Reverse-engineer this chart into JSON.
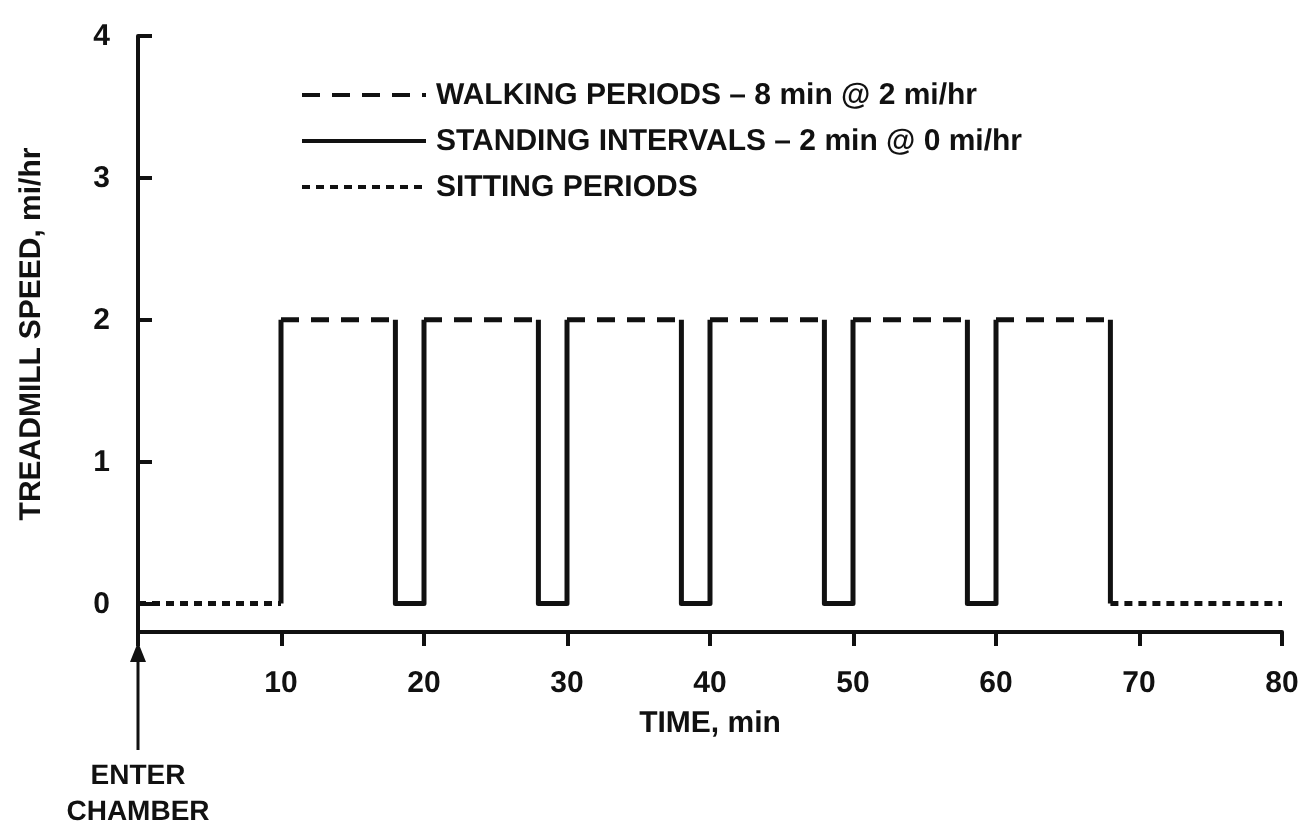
{
  "chart_data": {
    "type": "line",
    "xlabel": "TIME, min",
    "ylabel": "TREADMILL SPEED, mi/hr",
    "xlim": [
      0,
      80
    ],
    "xticks": [
      {
        "value": 0,
        "label": null
      },
      10,
      20,
      30,
      40,
      50,
      60,
      70,
      80
    ],
    "ylim": [
      -0.2,
      4
    ],
    "yticks": [
      0,
      1,
      2,
      3,
      4
    ],
    "grid": false,
    "legend": "top left",
    "marker": "none",
    "annotations": [
      "ENTER\nCHAMBER"
    ],
    "series": [
      {
        "name": "WALKING PERIODS – 8 min @ 2 mi/hr",
        "color": "#111111",
        "line_style": "dashed",
        "x": [
          10,
          18,
          null,
          20,
          28,
          null,
          30,
          38,
          null,
          40,
          48,
          null,
          50,
          58,
          null,
          60,
          68
        ],
        "values": [
          2,
          2,
          null,
          2,
          2,
          null,
          2,
          2,
          null,
          2,
          2,
          null,
          2,
          2,
          null,
          2,
          2
        ]
      },
      {
        "name": "STANDING INTERVALS – 2 min @ 0 mi/hr",
        "color": "#111111",
        "line_style": "solid",
        "x": [
          10,
          10,
          null,
          18,
          18,
          20,
          20,
          null,
          28,
          28,
          30,
          30,
          null,
          38,
          38,
          40,
          40,
          null,
          48,
          48,
          50,
          50,
          null,
          58,
          58,
          60,
          60,
          null,
          68,
          68
        ],
        "values": [
          0,
          2,
          null,
          2,
          0,
          0,
          2,
          null,
          2,
          0,
          0,
          2,
          null,
          2,
          0,
          0,
          2,
          null,
          2,
          0,
          0,
          2,
          null,
          2,
          0,
          0,
          2,
          null,
          2,
          0
        ]
      },
      {
        "name": "SITTING PERIODS",
        "color": "#111111",
        "line_style": "dotted",
        "x": [
          0,
          10,
          null,
          68,
          80
        ],
        "values": [
          0,
          0,
          null,
          0,
          0
        ]
      }
    ]
  }
}
